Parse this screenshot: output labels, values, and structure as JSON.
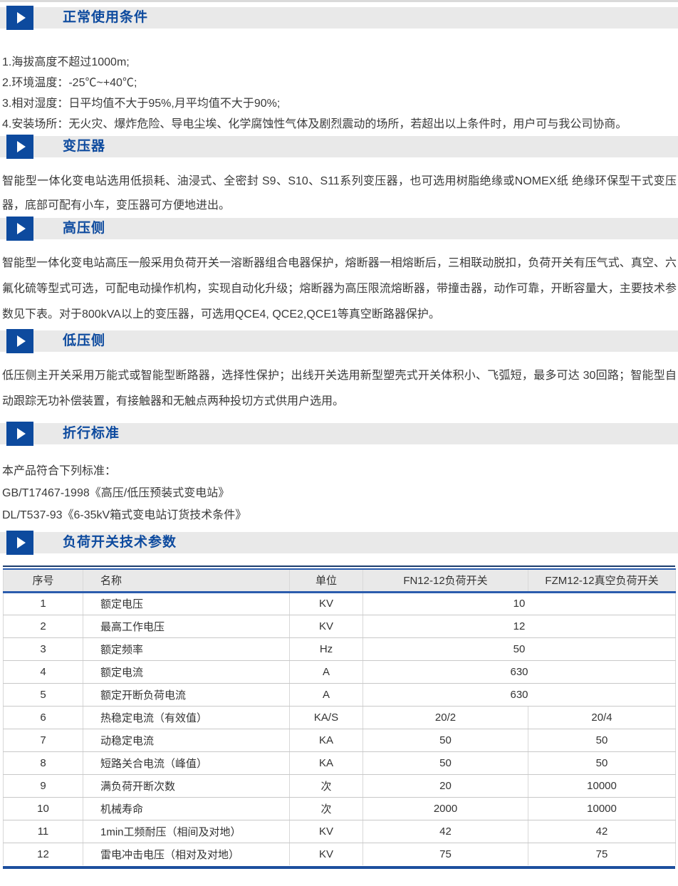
{
  "sections": [
    {
      "title": "正常使用条件",
      "items": [
        "1.海拔高度不超过1000m;",
        "2.环境温度：-25℃~+40℃;",
        "3.相对湿度：日平均值不大于95%,月平均值不大于90%;",
        "4.安装场所：无火灾、爆炸危险、导电尘埃、化学腐蚀性气体及剧烈震动的场所，若超出以上条件时，用户可与我公司协商。"
      ]
    },
    {
      "title": "变压器",
      "paragraph": "智能型一体化变电站选用低损耗、油浸式、全密封 S9、S10、S11系列变压器，也可选用树脂绝缘或NOMEX纸 绝缘环保型干式变压器，底部可配有小车，变压器可方便地进出。"
    },
    {
      "title": "高压侧",
      "paragraph": "智能型一体化变电站高压一般采用负荷开关一溶断器组合电器保护，熔断器一相熔断后，三相联动脱扣，负荷开关有压气式、真空、六氟化硫等型式可选，可配电动操作机构，实现自动化升级；熔断器为高压限流熔断器，带撞击器，动作可靠，开断容量大，主要技术参数见下表。对于800kVA以上的变压器，可选用QCE4, QCE2,QCE1等真空断路器保护。"
    },
    {
      "title": "低压侧",
      "paragraph": "低压侧主开关采用万能式或智能型断路器，选择性保护；出线开关选用新型塑壳式开关体积小、飞弧短，最多可达 30回路；智能型自动跟踪无功补偿装置，有接触器和无触点两种投切方式供用户选用。"
    },
    {
      "title": "折行标准",
      "lines": [
        "本产品符合下列标准：",
        "GB/T17467-1998《高压/低压预装式变电站》",
        "DL/T537-93《6-35kV箱式变电站订货技术条件》"
      ]
    },
    {
      "title": "负荷开关技术参数"
    }
  ],
  "colors": {
    "accent_blue": "#0d4a9e",
    "bar_gray": "#e9e9e9",
    "table_border_blue": "#2b5cad"
  },
  "table": {
    "headers": [
      "序号",
      "名称",
      "单位",
      "FN12-12负荷开关",
      "FZM12-12真空负荷开关"
    ],
    "rows": [
      {
        "no": "1",
        "name": "额定电压",
        "unit": "KV",
        "merged": "10"
      },
      {
        "no": "2",
        "name": "最高工作电压",
        "unit": "KV",
        "merged": "12"
      },
      {
        "no": "3",
        "name": "额定频率",
        "unit": "Hz",
        "merged": "50"
      },
      {
        "no": "4",
        "name": "额定电流",
        "unit": "A",
        "merged": "630"
      },
      {
        "no": "5",
        "name": "额定开断负荷电流",
        "unit": "A",
        "merged": "630"
      },
      {
        "no": "6",
        "name": "热稳定电流（有效值）",
        "unit": "KA/S",
        "fn": "20/2",
        "fzm": "20/4"
      },
      {
        "no": "7",
        "name": "动稳定电流",
        "unit": "KA",
        "fn": "50",
        "fzm": "50"
      },
      {
        "no": "8",
        "name": "短路关合电流（峰值）",
        "unit": "KA",
        "fn": "50",
        "fzm": "50"
      },
      {
        "no": "9",
        "name": "满负荷开断次数",
        "unit": "次",
        "fn": "20",
        "fzm": "10000"
      },
      {
        "no": "10",
        "name": "机械寿命",
        "unit": "次",
        "fn": "2000",
        "fzm": "10000"
      },
      {
        "no": "11",
        "name": "1min工频耐压（相间及对地）",
        "unit": "KV",
        "fn": "42",
        "fzm": "42"
      },
      {
        "no": "12",
        "name": "雷电冲击电压（相对及对地）",
        "unit": "KV",
        "fn": "75",
        "fzm": "75"
      }
    ]
  }
}
